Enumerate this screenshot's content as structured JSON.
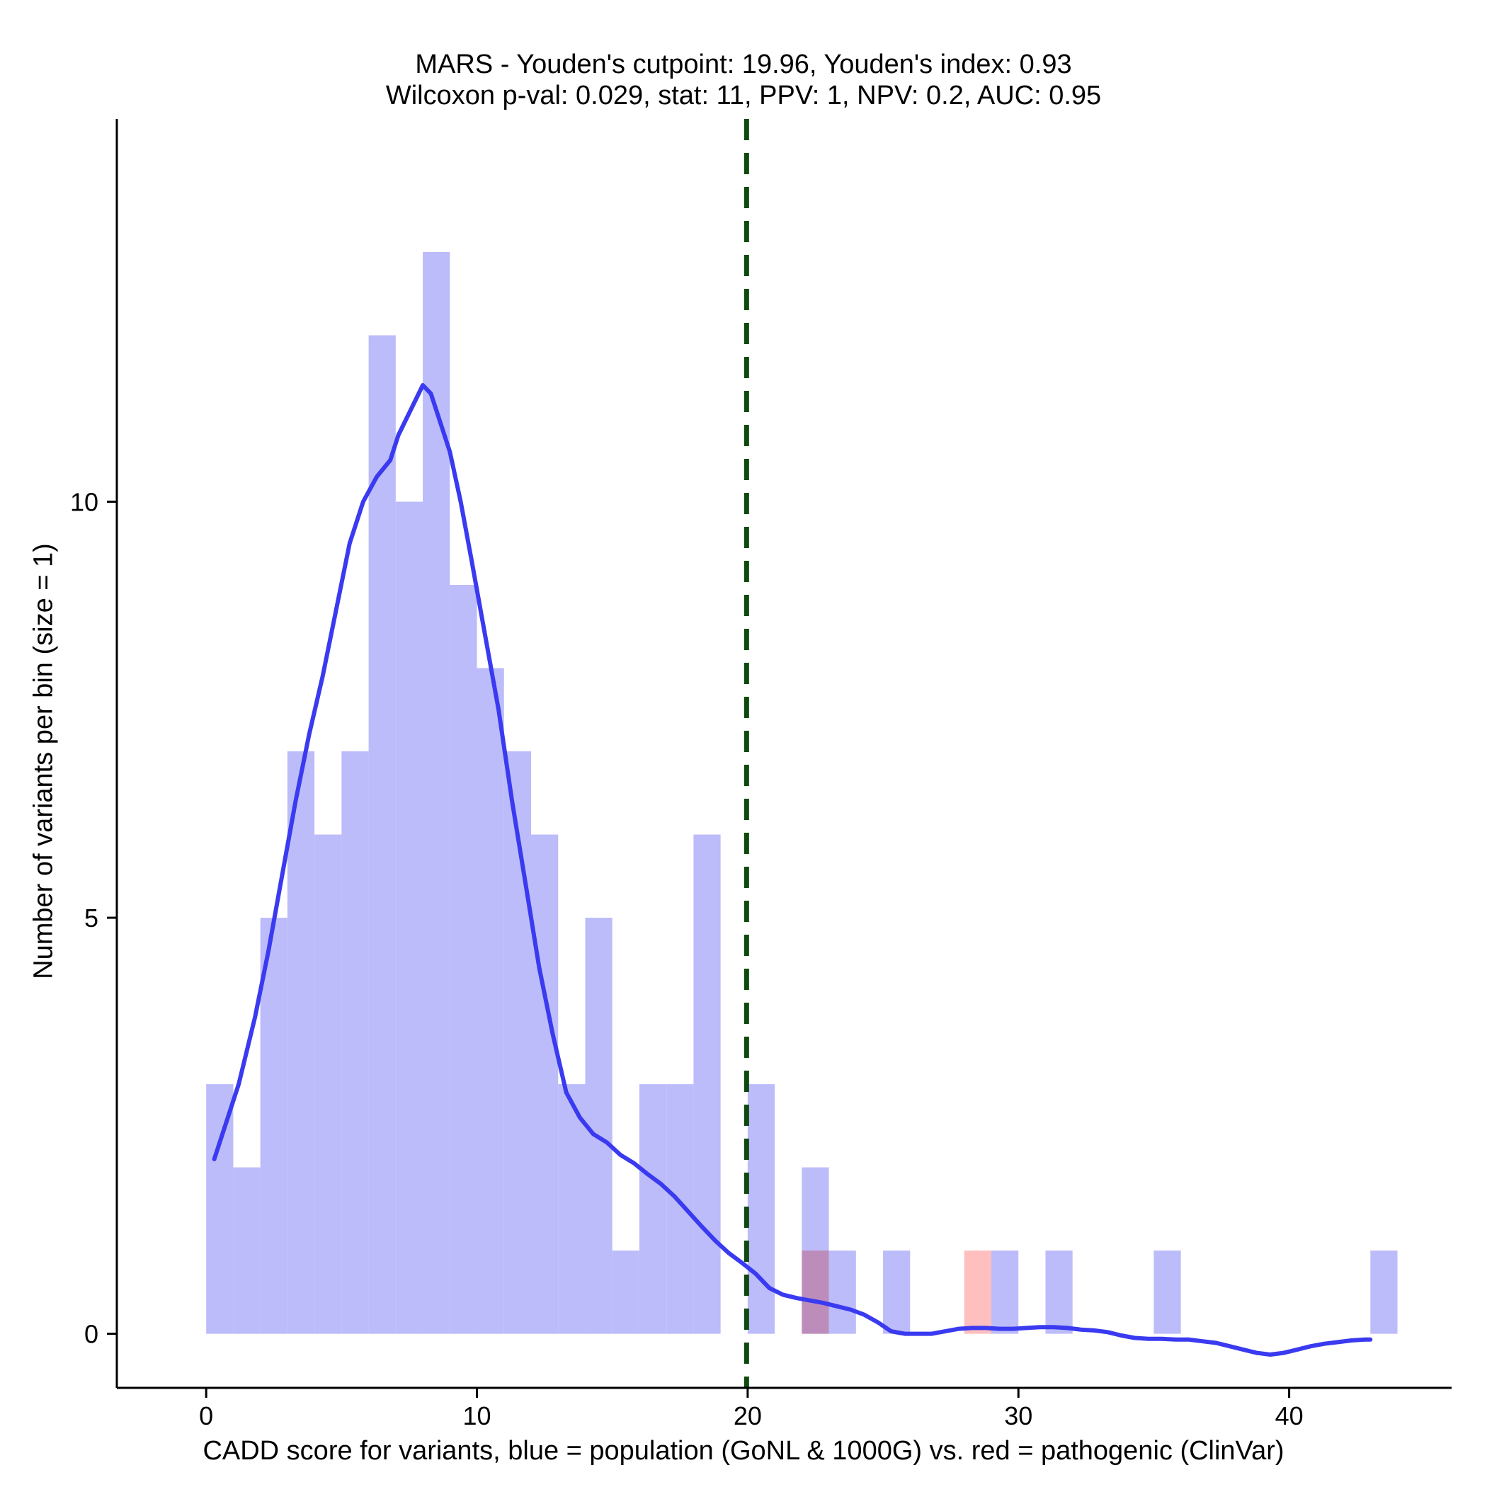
{
  "chart_data": {
    "type": "bar",
    "title": "MARS - Youden's cutpoint: 19.96, Youden's index: 0.93",
    "subtitle": "Wilcoxon p-val: 0.029, stat: 11, PPV: 1, NPV: 0.2, AUC: 0.95",
    "xlabel": "CADD score for variants, blue = population (GoNL & 1000G) vs. red = pathogenic (ClinVar)",
    "ylabel": "Number of variants per bin (size = 1)",
    "xlim": [
      -3.3,
      46
    ],
    "ylim": [
      -0.65,
      14.6
    ],
    "xticks": [
      "0",
      "10",
      "20",
      "30",
      "40"
    ],
    "xtick_values": [
      0,
      10,
      20,
      30,
      40
    ],
    "yticks": [
      "0",
      "5",
      "10"
    ],
    "ytick_values": [
      0,
      5,
      10
    ],
    "grid": false,
    "bin_size": 1,
    "series": [
      {
        "name": "population (GoNL & 1000G)",
        "color": "#bcbcfa",
        "bins": [
          {
            "start": 0,
            "count": 3
          },
          {
            "start": 1,
            "count": 2
          },
          {
            "start": 2,
            "count": 5
          },
          {
            "start": 3,
            "count": 7
          },
          {
            "start": 4,
            "count": 6
          },
          {
            "start": 5,
            "count": 7
          },
          {
            "start": 6,
            "count": 12
          },
          {
            "start": 7,
            "count": 10
          },
          {
            "start": 8,
            "count": 13
          },
          {
            "start": 9,
            "count": 9
          },
          {
            "start": 10,
            "count": 8
          },
          {
            "start": 11,
            "count": 7
          },
          {
            "start": 12,
            "count": 6
          },
          {
            "start": 13,
            "count": 3
          },
          {
            "start": 14,
            "count": 5
          },
          {
            "start": 15,
            "count": 1
          },
          {
            "start": 16,
            "count": 3
          },
          {
            "start": 17,
            "count": 3
          },
          {
            "start": 18,
            "count": 6
          },
          {
            "start": 20,
            "count": 3
          },
          {
            "start": 22,
            "count": 2
          },
          {
            "start": 23,
            "count": 1
          },
          {
            "start": 25,
            "count": 1
          },
          {
            "start": 29,
            "count": 1
          },
          {
            "start": 31,
            "count": 1
          },
          {
            "start": 35,
            "count": 1
          },
          {
            "start": 43,
            "count": 1
          }
        ]
      },
      {
        "name": "pathogenic (ClinVar)",
        "color": "#ffbcbc",
        "bins": [
          {
            "start": 22,
            "count": 1
          },
          {
            "start": 28,
            "count": 1
          }
        ]
      }
    ],
    "density_curve": {
      "color": "#3a3af0",
      "x": [
        0.3,
        0.8,
        1.2,
        1.8,
        2.3,
        2.8,
        3.3,
        3.8,
        4.3,
        4.8,
        5.3,
        5.8,
        6.3,
        6.8,
        7.1,
        7.4,
        7.7,
        8.0,
        8.3,
        8.6,
        9.0,
        9.4,
        9.8,
        10.3,
        10.8,
        11.3,
        11.8,
        12.3,
        12.8,
        13.3,
        13.8,
        14.3,
        14.8,
        15.3,
        15.8,
        16.3,
        16.8,
        17.3,
        17.8,
        18.3,
        18.8,
        19.3,
        19.8,
        20.3,
        20.8,
        21.3,
        21.8,
        22.3,
        22.8,
        23.3,
        23.8,
        24.3,
        24.8,
        25.3,
        25.8,
        26.3,
        26.8,
        27.3,
        27.8,
        28.3,
        28.8,
        29.3,
        29.8,
        30.3,
        30.8,
        31.3,
        31.8,
        32.3,
        32.8,
        33.3,
        33.8,
        34.3,
        34.8,
        35.3,
        35.8,
        36.3,
        36.8,
        37.3,
        37.8,
        38.3,
        38.8,
        39.3,
        39.8,
        40.3,
        40.8,
        41.3,
        41.8,
        42.3,
        42.8,
        43.0
      ],
      "y": [
        2.1,
        2.6,
        3.0,
        3.8,
        4.6,
        5.5,
        6.4,
        7.2,
        7.9,
        8.7,
        9.5,
        10.0,
        10.3,
        10.5,
        10.8,
        11.0,
        11.2,
        11.4,
        11.3,
        11.0,
        10.6,
        10.0,
        9.3,
        8.4,
        7.5,
        6.4,
        5.4,
        4.4,
        3.6,
        2.9,
        2.6,
        2.4,
        2.3,
        2.15,
        2.05,
        1.92,
        1.8,
        1.65,
        1.47,
        1.29,
        1.12,
        0.97,
        0.85,
        0.72,
        0.55,
        0.47,
        0.43,
        0.4,
        0.37,
        0.33,
        0.29,
        0.23,
        0.14,
        0.03,
        0.0,
        0.0,
        0.0,
        0.03,
        0.06,
        0.07,
        0.07,
        0.06,
        0.06,
        0.07,
        0.08,
        0.08,
        0.07,
        0.05,
        0.04,
        0.02,
        -0.02,
        -0.05,
        -0.06,
        -0.06,
        -0.07,
        -0.07,
        -0.09,
        -0.11,
        -0.15,
        -0.19,
        -0.23,
        -0.25,
        -0.23,
        -0.19,
        -0.15,
        -0.12,
        -0.1,
        -0.08,
        -0.07,
        -0.07
      ]
    },
    "cutpoint": {
      "x": 19.96,
      "color": "#0e4a0e",
      "style": "dashed"
    }
  }
}
